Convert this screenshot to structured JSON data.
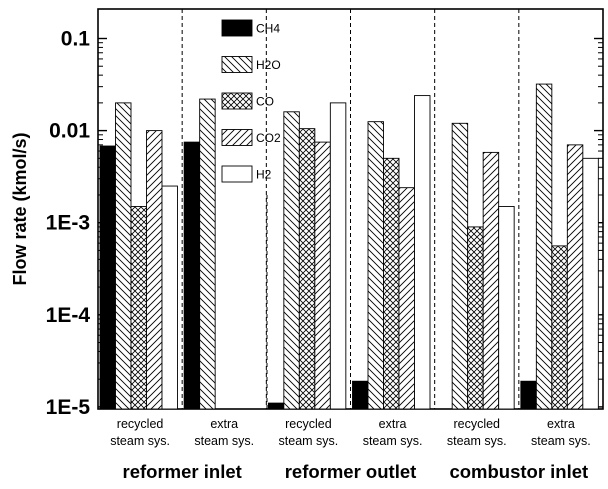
{
  "chart_data": {
    "type": "bar",
    "yscale": "log",
    "ylim": [
      1e-05,
      0.2
    ],
    "ylabel": "Flow rate (kmol/s)",
    "yticks": [
      "0.1",
      "0.01",
      "1E-3",
      "1E-4",
      "1E-5"
    ],
    "ytick_values": [
      0.1,
      0.01,
      0.001,
      0.0001,
      1e-05
    ],
    "grid": false,
    "legend_position": "top-center",
    "categories": [
      [
        "recycled",
        "steam sys."
      ],
      [
        "extra",
        "steam sys."
      ],
      [
        "recycled",
        "steam sys."
      ],
      [
        "extra",
        "steam sys."
      ],
      [
        "recycled",
        "steam sys."
      ],
      [
        "extra",
        "steam sys."
      ]
    ],
    "groups": [
      "reformer inlet",
      "reformer outlet",
      "combustor inlet"
    ],
    "series": [
      {
        "name": "CH4",
        "pattern": "solid",
        "values": [
          0.0068,
          0.0075,
          1.1e-05,
          1.9e-05,
          null,
          1.9e-05
        ]
      },
      {
        "name": "H2O",
        "pattern": "backslash",
        "values": [
          0.02,
          0.022,
          0.016,
          0.0125,
          0.012,
          0.032
        ]
      },
      {
        "name": "CO",
        "pattern": "crosshatch",
        "values": [
          0.0015,
          null,
          0.0105,
          0.005,
          0.0009,
          0.00056
        ]
      },
      {
        "name": "CO2",
        "pattern": "slash",
        "values": [
          0.01,
          null,
          0.0075,
          0.0024,
          0.0058,
          0.007
        ]
      },
      {
        "name": "H2",
        "pattern": "empty",
        "values": [
          0.0025,
          null,
          0.02,
          0.024,
          0.0015,
          0.005
        ]
      }
    ]
  }
}
